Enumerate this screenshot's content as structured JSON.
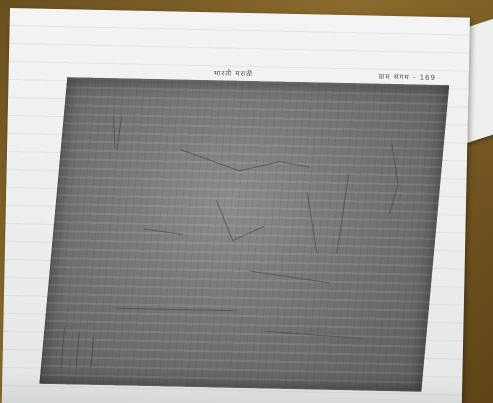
{
  "scene": {
    "description_icons": [
      "document-photo"
    ],
    "colors": {
      "table": "#7a5a25",
      "paper": "#f0f1f0",
      "photocopy": "#777777"
    }
  },
  "page": {
    "header_left": "भारती मराठी",
    "header_right": "ग्राम संगम - 169"
  }
}
